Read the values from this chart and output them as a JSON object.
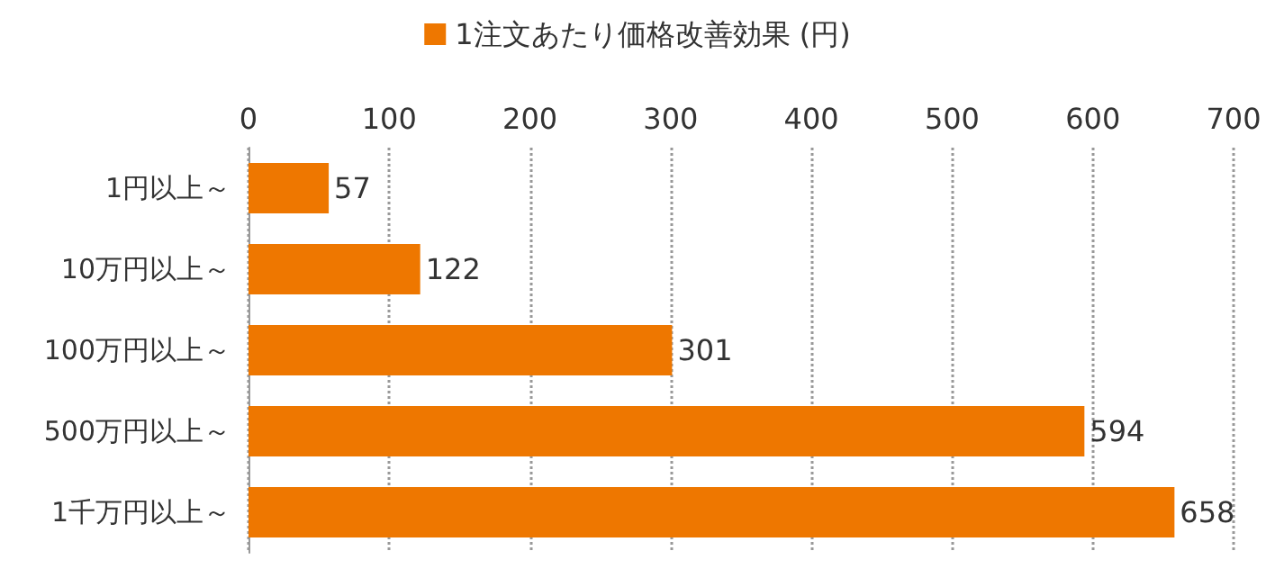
{
  "chart_data": {
    "type": "bar",
    "orientation": "horizontal",
    "categories": [
      "1円以上～",
      "10万円以上～",
      "100万円以上～",
      "500万円以上～",
      "1千万円以上～"
    ],
    "series": [
      {
        "name": "1注文あたり価格改善効果 (円)",
        "color": "#ee7700",
        "values": [
          57,
          122,
          301,
          594,
          658
        ]
      }
    ],
    "xlim": [
      0,
      700
    ],
    "xticks": [
      0,
      100,
      200,
      300,
      400,
      500,
      600,
      700
    ],
    "grid": "x",
    "legend": "top",
    "data_labels": true
  }
}
